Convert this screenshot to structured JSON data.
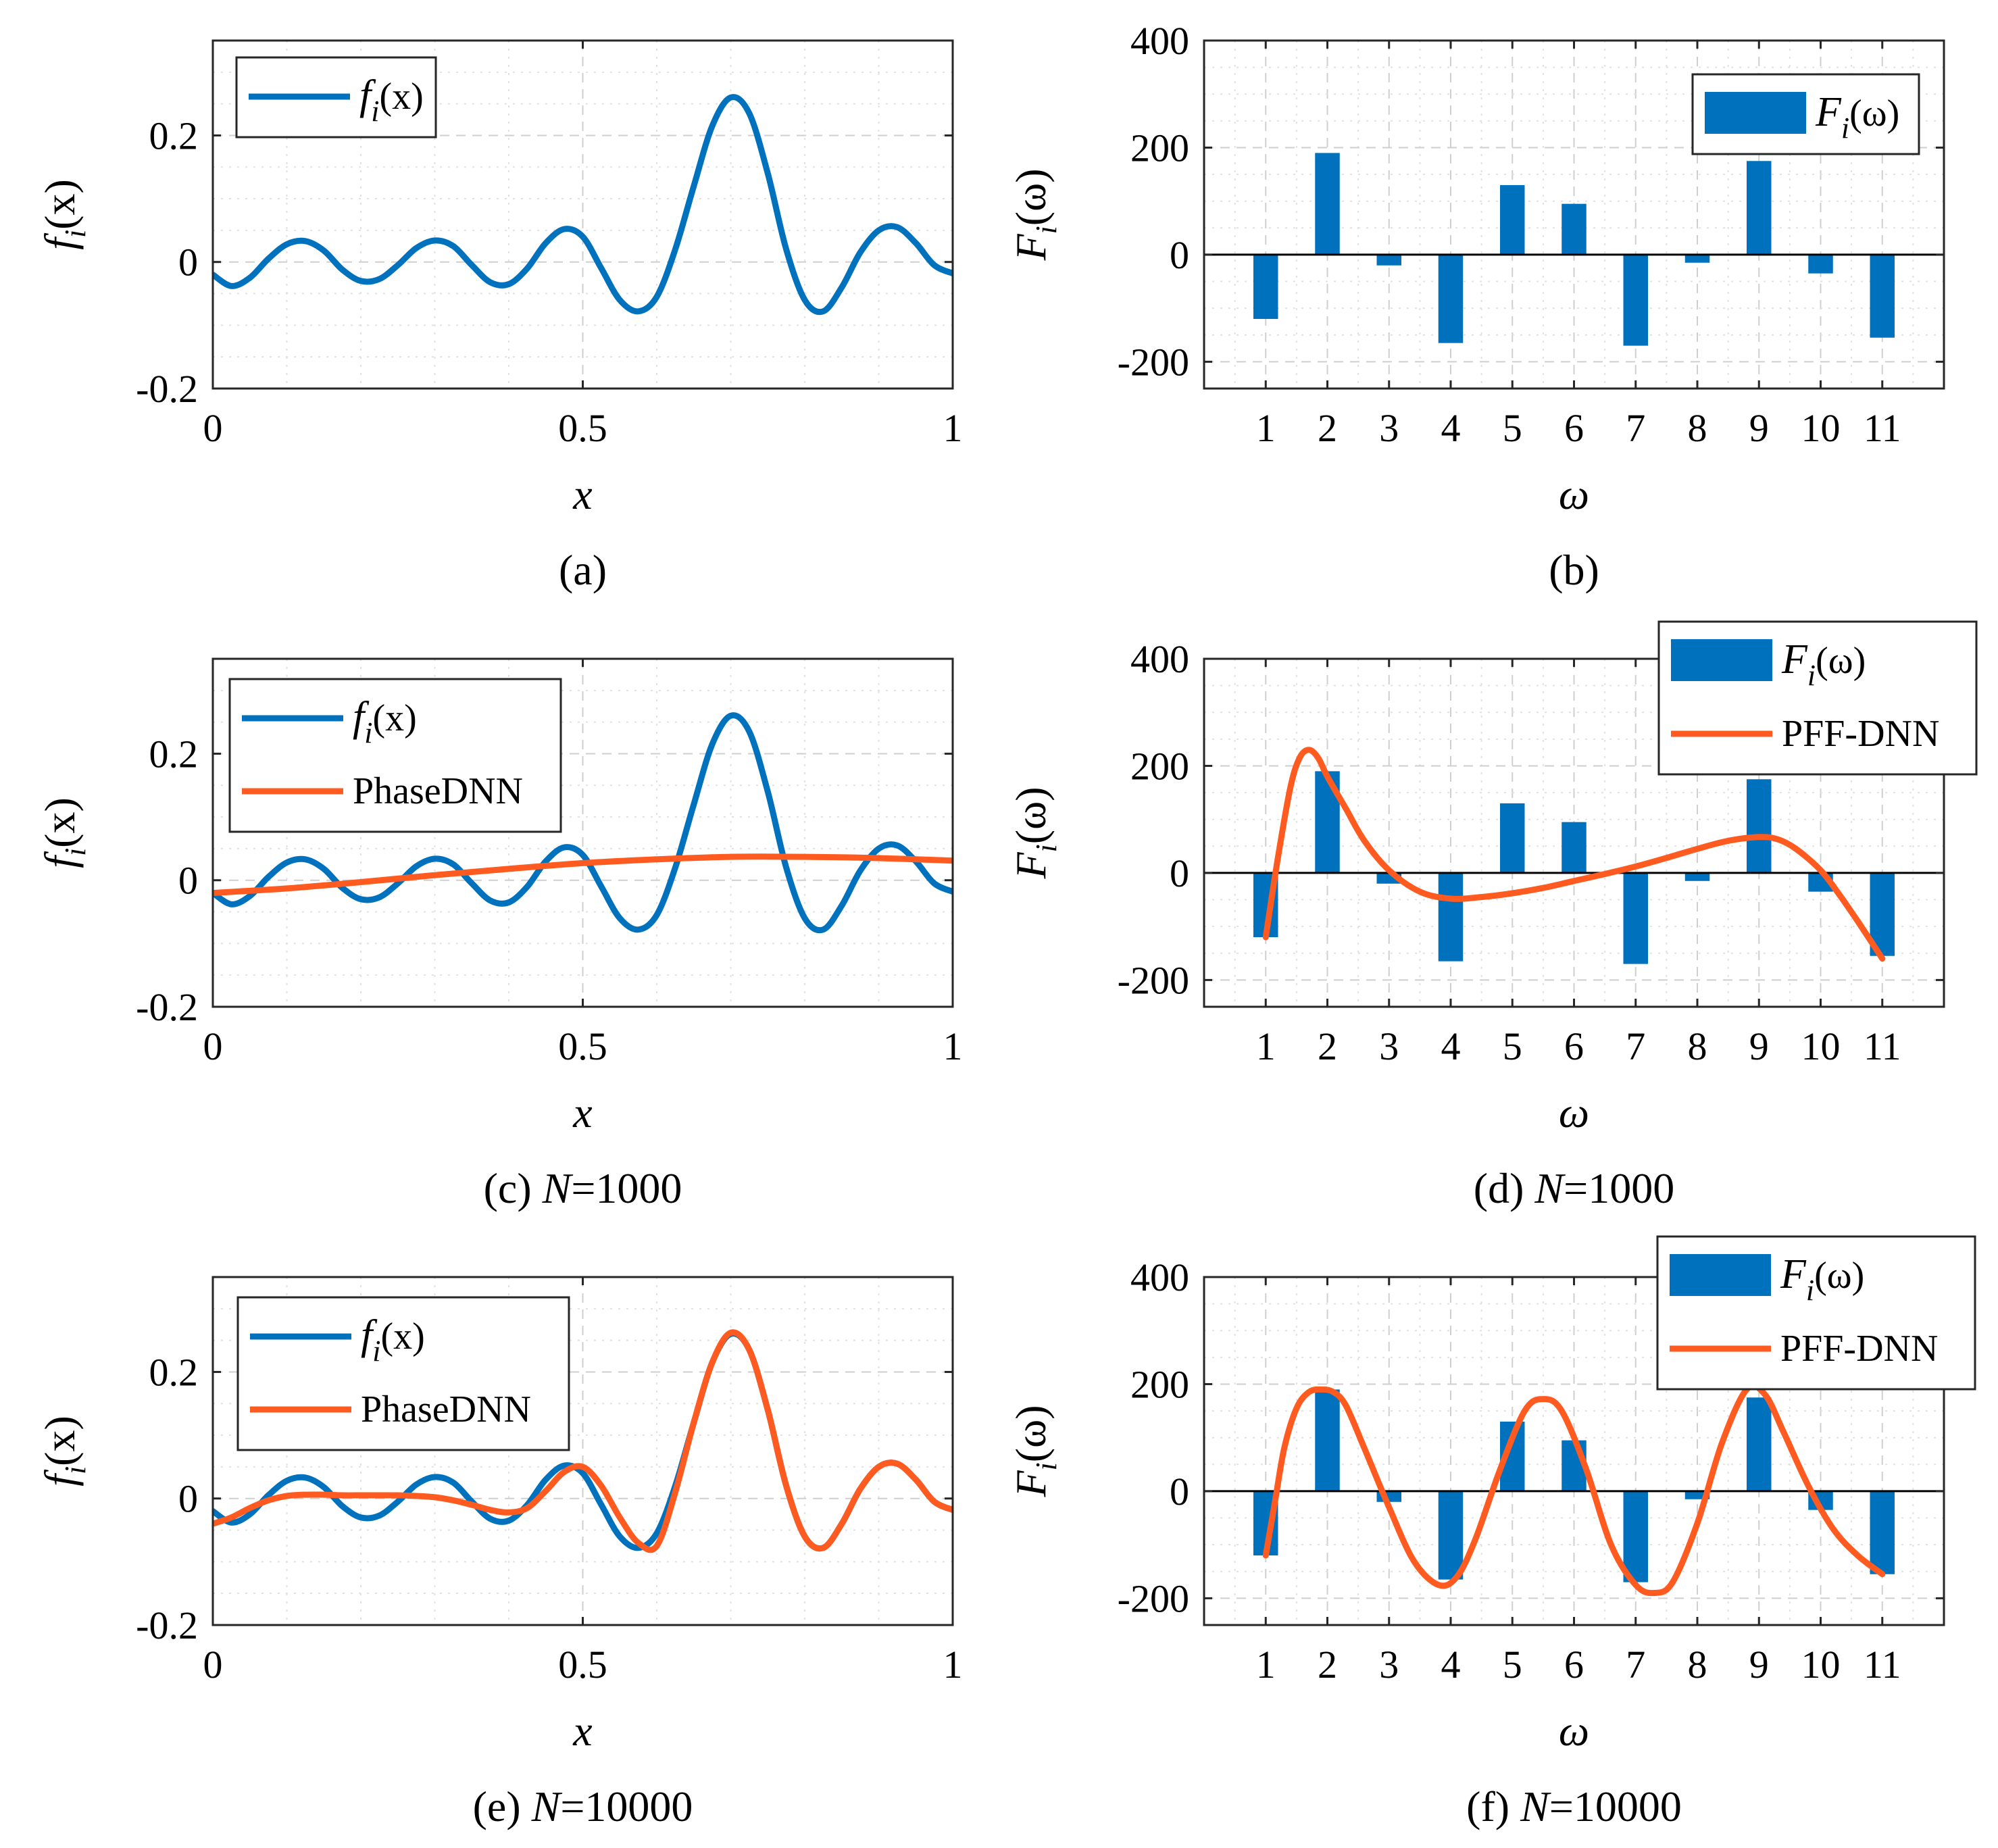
{
  "colors": {
    "blue": "#0072BD",
    "orange": "#FF5A1F"
  },
  "chart_data": [
    {
      "id": "a",
      "type": "line",
      "caption": "(a)",
      "caption_var": "",
      "caption_rest": "",
      "xlabel": "x",
      "ylabel": {
        "base": "f",
        "sub": "i",
        "arg": "(x)"
      },
      "xlim": [
        0,
        1
      ],
      "ylim": [
        -0.2,
        0.35
      ],
      "xticks": [
        0,
        0.5,
        1
      ],
      "xtick_labels": [
        "0",
        "0.5",
        "1"
      ],
      "yticks": [
        -0.2,
        0,
        0.2
      ],
      "ytick_labels": [
        "-0.2",
        "0",
        "0.2"
      ],
      "legend": [
        {
          "label_base": "f",
          "label_sub": "i",
          "label_arg": "(x)",
          "kind": "line",
          "color": "#0072BD"
        }
      ],
      "series": [
        {
          "name": "f_i(x)",
          "color": "#0072BD",
          "x": [
            0,
            0.025,
            0.05,
            0.075,
            0.1,
            0.125,
            0.15,
            0.175,
            0.2,
            0.225,
            0.25,
            0.275,
            0.3,
            0.325,
            0.35,
            0.375,
            0.4,
            0.425,
            0.45,
            0.475,
            0.5,
            0.525,
            0.55,
            0.575,
            0.6,
            0.625,
            0.65,
            0.675,
            0.7,
            0.725,
            0.75,
            0.775,
            0.8,
            0.825,
            0.85,
            0.875,
            0.9,
            0.925,
            0.95,
            0.975,
            1
          ],
          "y": [
            -0.02,
            -0.038,
            -0.025,
            0.005,
            0.028,
            0.033,
            0.018,
            -0.012,
            -0.03,
            -0.027,
            -0.005,
            0.022,
            0.034,
            0.025,
            -0.005,
            -0.032,
            -0.035,
            -0.01,
            0.03,
            0.052,
            0.04,
            -0.01,
            -0.06,
            -0.078,
            -0.055,
            0.02,
            0.12,
            0.215,
            0.26,
            0.235,
            0.14,
            0.02,
            -0.06,
            -0.078,
            -0.04,
            0.015,
            0.05,
            0.055,
            0.03,
            -0.005,
            -0.018
          ]
        }
      ]
    },
    {
      "id": "b",
      "type": "bar",
      "caption": "(b)",
      "caption_var": "",
      "caption_rest": "",
      "xlabel": "ω",
      "ylabel": {
        "base": "F",
        "sub": "i",
        "arg": "(ω)"
      },
      "xlim": [
        0,
        12
      ],
      "ylim": [
        -250,
        400
      ],
      "categories": [
        "1",
        "2",
        "3",
        "4",
        "5",
        "6",
        "7",
        "8",
        "9",
        "10",
        "11"
      ],
      "yticks": [
        -200,
        0,
        200,
        400
      ],
      "ytick_labels": [
        "-200",
        "0",
        "200",
        "400"
      ],
      "legend": [
        {
          "label_base": "F",
          "label_sub": "i",
          "label_arg": "(ω)",
          "kind": "bar",
          "color": "#0072BD"
        }
      ],
      "values": [
        -120,
        190,
        -20,
        -165,
        130,
        95,
        -170,
        -15,
        175,
        -35,
        -155
      ],
      "series": []
    },
    {
      "id": "c",
      "type": "line",
      "caption": "(c) ",
      "caption_var": "N",
      "caption_rest": "=1000",
      "xlabel": "x",
      "ylabel": {
        "base": "f",
        "sub": "i",
        "arg": "(x)"
      },
      "xlim": [
        0,
        1
      ],
      "ylim": [
        -0.2,
        0.35
      ],
      "xticks": [
        0,
        0.5,
        1
      ],
      "xtick_labels": [
        "0",
        "0.5",
        "1"
      ],
      "yticks": [
        -0.2,
        0,
        0.2
      ],
      "ytick_labels": [
        "-0.2",
        "0",
        "0.2"
      ],
      "legend": [
        {
          "label_base": "f",
          "label_sub": "i",
          "label_arg": "(x)",
          "kind": "line",
          "color": "#0072BD"
        },
        {
          "label_base": "PhaseDNN",
          "label_sub": "",
          "label_arg": "",
          "kind": "line",
          "color": "#FF5A1F"
        }
      ],
      "series": [
        {
          "name": "f_i(x)",
          "color": "#0072BD",
          "x": [
            0,
            0.025,
            0.05,
            0.075,
            0.1,
            0.125,
            0.15,
            0.175,
            0.2,
            0.225,
            0.25,
            0.275,
            0.3,
            0.325,
            0.35,
            0.375,
            0.4,
            0.425,
            0.45,
            0.475,
            0.5,
            0.525,
            0.55,
            0.575,
            0.6,
            0.625,
            0.65,
            0.675,
            0.7,
            0.725,
            0.75,
            0.775,
            0.8,
            0.825,
            0.85,
            0.875,
            0.9,
            0.925,
            0.95,
            0.975,
            1
          ],
          "y": [
            -0.02,
            -0.038,
            -0.025,
            0.005,
            0.028,
            0.033,
            0.018,
            -0.012,
            -0.03,
            -0.027,
            -0.005,
            0.022,
            0.034,
            0.025,
            -0.005,
            -0.032,
            -0.035,
            -0.01,
            0.03,
            0.052,
            0.04,
            -0.01,
            -0.06,
            -0.078,
            -0.055,
            0.02,
            0.12,
            0.215,
            0.26,
            0.235,
            0.14,
            0.02,
            -0.06,
            -0.078,
            -0.04,
            0.015,
            0.05,
            0.055,
            0.03,
            -0.005,
            -0.018
          ]
        },
        {
          "name": "PhaseDNN",
          "color": "#FF5A1F",
          "x": [
            0,
            0.1,
            0.2,
            0.3,
            0.4,
            0.5,
            0.6,
            0.7,
            0.8,
            0.9,
            1
          ],
          "y": [
            -0.02,
            -0.013,
            -0.003,
            0.008,
            0.018,
            0.027,
            0.033,
            0.037,
            0.037,
            0.035,
            0.031
          ]
        }
      ]
    },
    {
      "id": "d",
      "type": "bar",
      "caption": "(d) ",
      "caption_var": "N",
      "caption_rest": "=1000",
      "xlabel": "ω",
      "ylabel": {
        "base": "F",
        "sub": "i",
        "arg": "(ω)"
      },
      "xlim": [
        0,
        12
      ],
      "ylim": [
        -250,
        400
      ],
      "categories": [
        "1",
        "2",
        "3",
        "4",
        "5",
        "6",
        "7",
        "8",
        "9",
        "10",
        "11"
      ],
      "yticks": [
        -200,
        0,
        200,
        400
      ],
      "ytick_labels": [
        "-200",
        "0",
        "200",
        "400"
      ],
      "legend": [
        {
          "label_base": "F",
          "label_sub": "i",
          "label_arg": "(ω)",
          "kind": "bar",
          "color": "#0072BD"
        },
        {
          "label_base": "PFF-DNN",
          "label_sub": "",
          "label_arg": "",
          "kind": "line",
          "color": "#FF5A1F"
        }
      ],
      "values": [
        -120,
        190,
        -20,
        -165,
        130,
        95,
        -170,
        -15,
        175,
        -35,
        -155
      ],
      "series": [
        {
          "name": "PFF-DNN",
          "color": "#FF5A1F",
          "x": [
            1,
            1.2,
            1.4,
            1.55,
            1.7,
            1.85,
            2,
            2.3,
            2.6,
            3,
            3.5,
            4,
            4.5,
            5,
            5.5,
            6,
            6.5,
            7,
            7.5,
            8,
            8.5,
            9,
            9.3,
            9.6,
            10,
            10.3,
            10.6,
            11
          ],
          "y": [
            -120,
            30,
            160,
            215,
            230,
            215,
            180,
            120,
            60,
            5,
            -35,
            -48,
            -45,
            -38,
            -28,
            -15,
            -2,
            12,
            28,
            45,
            60,
            67,
            63,
            45,
            5,
            -40,
            -90,
            -160
          ]
        }
      ]
    },
    {
      "id": "e",
      "type": "line",
      "caption": "(e) ",
      "caption_var": "N",
      "caption_rest": "=10000",
      "xlabel": "x",
      "ylabel": {
        "base": "f",
        "sub": "i",
        "arg": "(x)"
      },
      "xlim": [
        0,
        1
      ],
      "ylim": [
        -0.2,
        0.35
      ],
      "xticks": [
        0,
        0.5,
        1
      ],
      "xtick_labels": [
        "0",
        "0.5",
        "1"
      ],
      "yticks": [
        -0.2,
        0,
        0.2
      ],
      "ytick_labels": [
        "-0.2",
        "0",
        "0.2"
      ],
      "legend": [
        {
          "label_base": "f",
          "label_sub": "i",
          "label_arg": "(x)",
          "kind": "line",
          "color": "#0072BD"
        },
        {
          "label_base": "PhaseDNN",
          "label_sub": "",
          "label_arg": "",
          "kind": "line",
          "color": "#FF5A1F"
        }
      ],
      "series": [
        {
          "name": "f_i(x)",
          "color": "#0072BD",
          "x": [
            0,
            0.025,
            0.05,
            0.075,
            0.1,
            0.125,
            0.15,
            0.175,
            0.2,
            0.225,
            0.25,
            0.275,
            0.3,
            0.325,
            0.35,
            0.375,
            0.4,
            0.425,
            0.45,
            0.475,
            0.5,
            0.525,
            0.55,
            0.575,
            0.6,
            0.625,
            0.65,
            0.675,
            0.7,
            0.725,
            0.75,
            0.775,
            0.8,
            0.825,
            0.85,
            0.875,
            0.9,
            0.925,
            0.95,
            0.975,
            1
          ],
          "y": [
            -0.02,
            -0.038,
            -0.025,
            0.005,
            0.028,
            0.033,
            0.018,
            -0.012,
            -0.03,
            -0.027,
            -0.005,
            0.022,
            0.034,
            0.025,
            -0.005,
            -0.032,
            -0.035,
            -0.01,
            0.03,
            0.052,
            0.04,
            -0.01,
            -0.06,
            -0.078,
            -0.055,
            0.02,
            0.12,
            0.215,
            0.26,
            0.235,
            0.14,
            0.02,
            -0.06,
            -0.078,
            -0.04,
            0.015,
            0.05,
            0.055,
            0.03,
            -0.005,
            -0.018
          ]
        },
        {
          "name": "PhaseDNN",
          "color": "#FF5A1F",
          "x": [
            0,
            0.025,
            0.05,
            0.075,
            0.1,
            0.125,
            0.15,
            0.175,
            0.2,
            0.225,
            0.25,
            0.275,
            0.3,
            0.325,
            0.35,
            0.375,
            0.4,
            0.425,
            0.45,
            0.475,
            0.5,
            0.525,
            0.55,
            0.575,
            0.6,
            0.625,
            0.65,
            0.675,
            0.7,
            0.725,
            0.75,
            0.775,
            0.8,
            0.825,
            0.85,
            0.875,
            0.9,
            0.925,
            0.95,
            0.975,
            1
          ],
          "y": [
            -0.04,
            -0.03,
            -0.015,
            -0.003,
            0.004,
            0.006,
            0.006,
            0.005,
            0.005,
            0.005,
            0.005,
            0.004,
            0.002,
            -0.003,
            -0.01,
            -0.018,
            -0.022,
            -0.015,
            0.012,
            0.042,
            0.05,
            0.02,
            -0.03,
            -0.07,
            -0.075,
            0.01,
            0.12,
            0.215,
            0.262,
            0.235,
            0.14,
            0.02,
            -0.06,
            -0.078,
            -0.04,
            0.015,
            0.05,
            0.055,
            0.03,
            -0.005,
            -0.018
          ]
        }
      ]
    },
    {
      "id": "f",
      "type": "bar",
      "caption": "(f) ",
      "caption_var": "N",
      "caption_rest": "=10000",
      "xlabel": "ω",
      "ylabel": {
        "base": "F",
        "sub": "i",
        "arg": "(ω)"
      },
      "xlim": [
        0,
        12
      ],
      "ylim": [
        -250,
        400
      ],
      "categories": [
        "1",
        "2",
        "3",
        "4",
        "5",
        "6",
        "7",
        "8",
        "9",
        "10",
        "11"
      ],
      "yticks": [
        -200,
        0,
        200,
        400
      ],
      "ytick_labels": [
        "-200",
        "0",
        "200",
        "400"
      ],
      "legend": [
        {
          "label_base": "F",
          "label_sub": "i",
          "label_arg": "(ω)",
          "kind": "bar",
          "color": "#0072BD"
        },
        {
          "label_base": "PFF-DNN",
          "label_sub": "",
          "label_arg": "",
          "kind": "line",
          "color": "#FF5A1F"
        }
      ],
      "values": [
        -120,
        190,
        -20,
        -165,
        130,
        95,
        -170,
        -15,
        175,
        -35,
        -155
      ],
      "series": [
        {
          "name": "PFF-DNN",
          "color": "#FF5A1F",
          "x": [
            1,
            1.15,
            1.3,
            1.5,
            1.7,
            1.9,
            2.1,
            2.3,
            2.6,
            3,
            3.4,
            3.8,
            4.1,
            4.4,
            4.8,
            5.2,
            5.5,
            5.8,
            6.2,
            6.6,
            7,
            7.3,
            7.6,
            8,
            8.4,
            8.8,
            9.1,
            9.4,
            9.8,
            10.2,
            10.6,
            11
          ],
          "y": [
            -120,
            -20,
            80,
            155,
            185,
            190,
            185,
            160,
            80,
            -30,
            -130,
            -175,
            -160,
            -90,
            40,
            150,
            172,
            150,
            40,
            -100,
            -175,
            -190,
            -170,
            -60,
            90,
            190,
            180,
            110,
            10,
            -70,
            -120,
            -155
          ]
        }
      ]
    }
  ]
}
